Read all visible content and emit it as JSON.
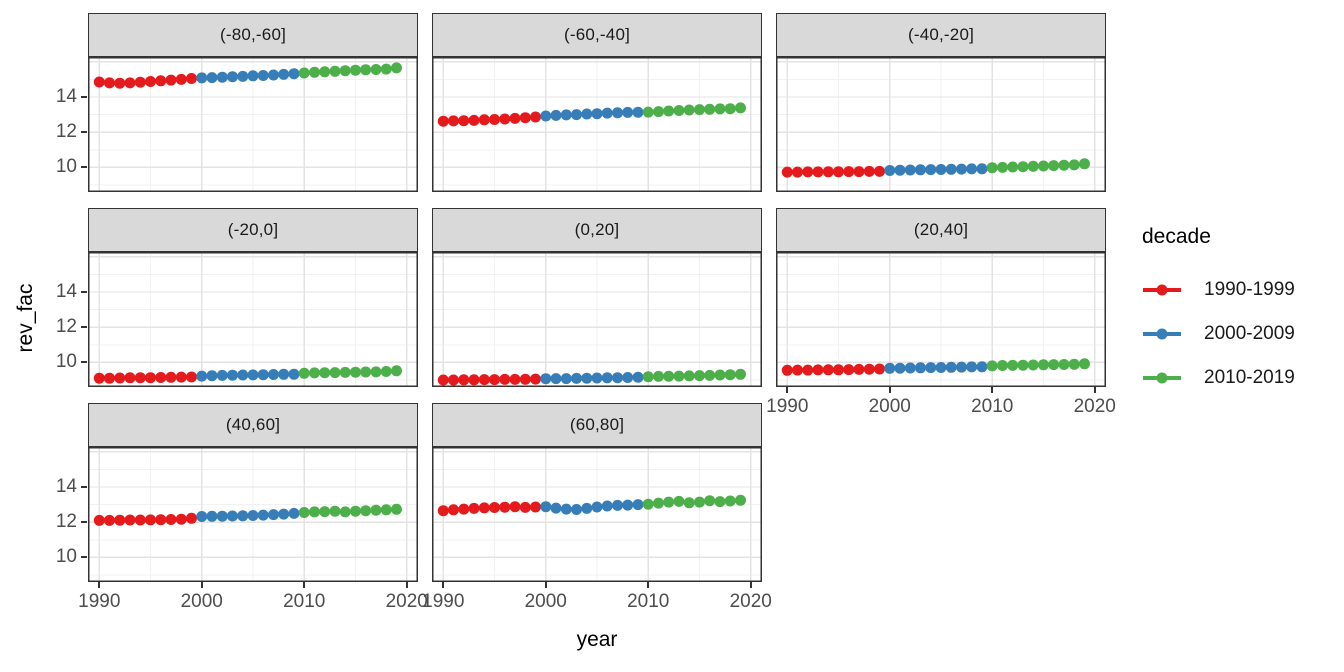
{
  "style": {
    "background": "#FFFFFF",
    "strip_bg": "#D9D9D9",
    "strip_text": "#1A1A1A",
    "panel_bg": "#FFFFFF",
    "panel_border": "#333333",
    "grid_major": "#E3E3E3",
    "grid_minor": "#F1F1F1",
    "axis_text": "#4D4D4D",
    "axis_title": "#000000"
  },
  "chart_data": {
    "type": "scatter",
    "title": "",
    "xlabel": "year",
    "ylabel": "rev_fac",
    "legend_title": "decade",
    "legend_position": "right",
    "grid": "on",
    "facet_layout": "3 columns, 8 panels, wrap",
    "x_ticks": [
      1990,
      2000,
      2010,
      2020
    ],
    "x_minor": [
      1995,
      2005,
      2015
    ],
    "y_ticks": [
      10,
      12,
      14
    ],
    "y_grid_major": [
      10,
      12,
      14,
      16
    ],
    "y_grid_minor": [
      9,
      11,
      13,
      15
    ],
    "x_domain": [
      1988.9,
      2021.1
    ],
    "y_domain": [
      8.6,
      16.27
    ],
    "x": [
      1990,
      1991,
      1992,
      1993,
      1994,
      1995,
      1996,
      1997,
      1998,
      1999,
      2000,
      2001,
      2002,
      2003,
      2004,
      2005,
      2006,
      2007,
      2008,
      2009,
      2010,
      2011,
      2012,
      2013,
      2014,
      2015,
      2016,
      2017,
      2018,
      2019
    ],
    "decades": [
      {
        "name": "1990-1999",
        "color": "#E41A1C",
        "start": 1990,
        "end": 1999
      },
      {
        "name": "2000-2009",
        "color": "#377EB8",
        "start": 2000,
        "end": 2009
      },
      {
        "name": "2010-2019",
        "color": "#4DAF4A",
        "start": 2010,
        "end": 2019
      }
    ],
    "facets": [
      {
        "label": "(-80,-60]",
        "values": [
          14.85,
          14.8,
          14.78,
          14.8,
          14.84,
          14.88,
          14.92,
          14.96,
          15.0,
          15.05,
          15.08,
          15.1,
          15.12,
          15.15,
          15.17,
          15.2,
          15.22,
          15.25,
          15.28,
          15.32,
          15.36,
          15.4,
          15.43,
          15.46,
          15.49,
          15.52,
          15.54,
          15.56,
          15.58,
          15.65
        ]
      },
      {
        "label": "(-60,-40]",
        "values": [
          12.62,
          12.64,
          12.65,
          12.67,
          12.7,
          12.72,
          12.75,
          12.78,
          12.82,
          12.86,
          12.92,
          12.95,
          12.98,
          13.0,
          13.03,
          13.05,
          13.08,
          13.1,
          13.12,
          13.13,
          13.14,
          13.17,
          13.2,
          13.23,
          13.26,
          13.28,
          13.3,
          13.32,
          13.33,
          13.38
        ]
      },
      {
        "label": "(-40,-20]",
        "values": [
          9.73,
          9.73,
          9.74,
          9.74,
          9.75,
          9.75,
          9.76,
          9.76,
          9.77,
          9.77,
          9.82,
          9.84,
          9.85,
          9.86,
          9.87,
          9.88,
          9.89,
          9.9,
          9.91,
          9.92,
          9.98,
          10.0,
          10.02,
          10.04,
          10.06,
          10.08,
          10.1,
          10.12,
          10.14,
          10.2
        ]
      },
      {
        "label": "(-20,0]",
        "values": [
          9.1,
          9.1,
          9.11,
          9.12,
          9.13,
          9.13,
          9.14,
          9.15,
          9.16,
          9.17,
          9.22,
          9.24,
          9.26,
          9.27,
          9.28,
          9.29,
          9.3,
          9.31,
          9.32,
          9.33,
          9.38,
          9.4,
          9.41,
          9.42,
          9.43,
          9.44,
          9.45,
          9.46,
          9.48,
          9.52
        ]
      },
      {
        "label": "(0,20]",
        "values": [
          9.0,
          9.0,
          9.01,
          9.01,
          9.02,
          9.02,
          9.03,
          9.03,
          9.04,
          9.05,
          9.07,
          9.08,
          9.08,
          9.09,
          9.1,
          9.11,
          9.12,
          9.13,
          9.14,
          9.15,
          9.18,
          9.2,
          9.21,
          9.22,
          9.23,
          9.25,
          9.26,
          9.28,
          9.3,
          9.32
        ]
      },
      {
        "label": "(20,40]",
        "values": [
          9.55,
          9.56,
          9.56,
          9.57,
          9.58,
          9.58,
          9.59,
          9.6,
          9.61,
          9.62,
          9.66,
          9.67,
          9.68,
          9.69,
          9.7,
          9.71,
          9.72,
          9.73,
          9.74,
          9.75,
          9.8,
          9.82,
          9.83,
          9.84,
          9.85,
          9.86,
          9.87,
          9.88,
          9.89,
          9.92
        ]
      },
      {
        "label": "(40,60]",
        "values": [
          12.1,
          12.1,
          12.11,
          12.12,
          12.12,
          12.13,
          12.14,
          12.15,
          12.17,
          12.22,
          12.32,
          12.33,
          12.34,
          12.35,
          12.36,
          12.38,
          12.4,
          12.43,
          12.46,
          12.5,
          12.55,
          12.58,
          12.6,
          12.62,
          12.58,
          12.62,
          12.65,
          12.68,
          12.7,
          12.73
        ]
      },
      {
        "label": "(60,80]",
        "values": [
          12.65,
          12.7,
          12.74,
          12.78,
          12.81,
          12.83,
          12.85,
          12.88,
          12.84,
          12.86,
          12.88,
          12.8,
          12.74,
          12.72,
          12.78,
          12.86,
          12.92,
          12.95,
          12.97,
          13.0,
          13.02,
          13.08,
          13.14,
          13.18,
          13.1,
          13.14,
          13.22,
          13.17,
          13.2,
          13.24
        ]
      }
    ]
  }
}
